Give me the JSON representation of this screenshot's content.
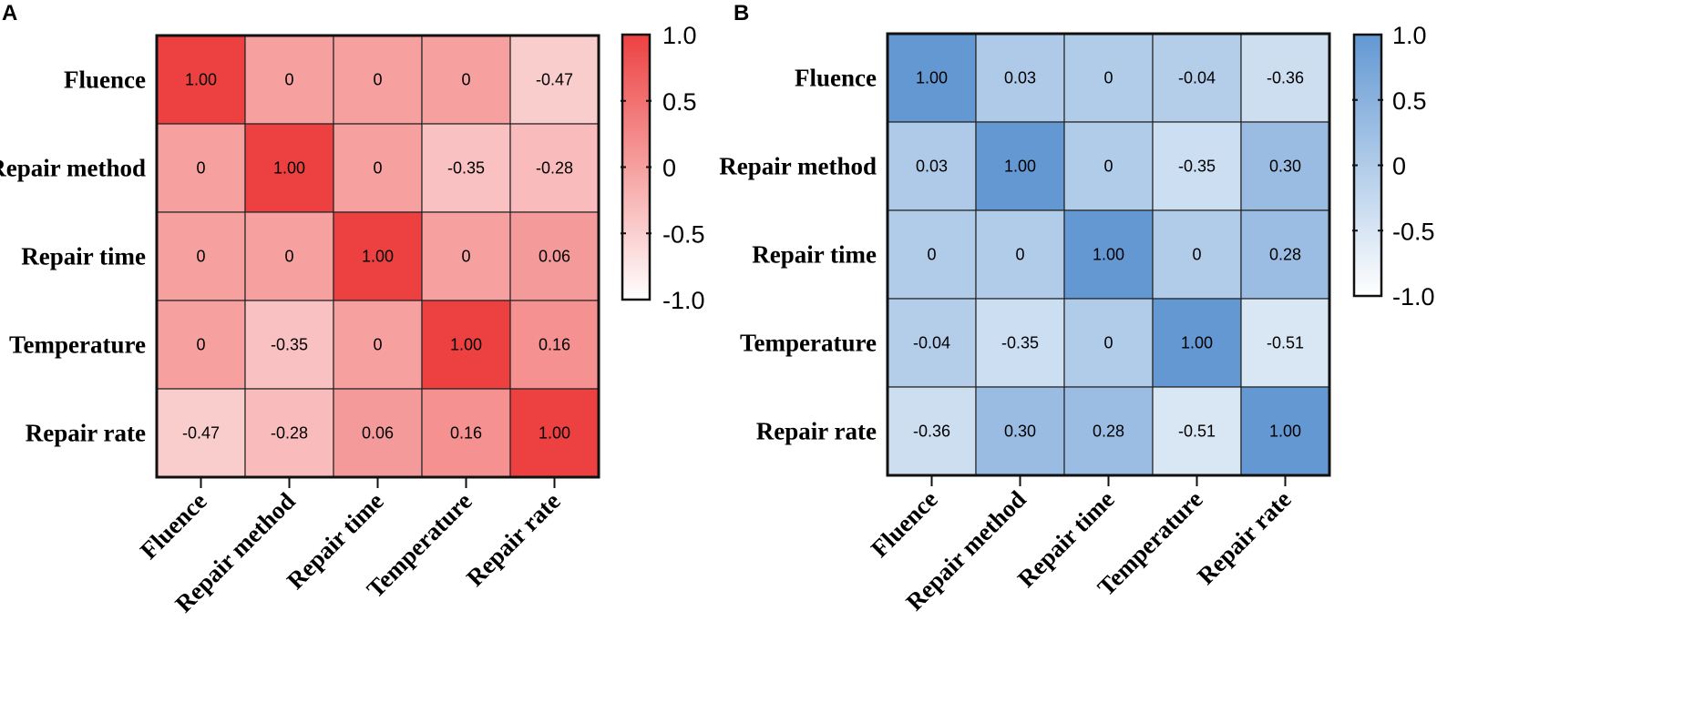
{
  "chart_data": [
    {
      "panel": "A",
      "type": "heatmap",
      "variables": [
        "Fluence",
        "Repair method",
        "Repair time",
        "Temperature",
        "Repair rate"
      ],
      "matrix": [
        [
          1.0,
          0,
          0,
          0,
          -0.47
        ],
        [
          0,
          1.0,
          0,
          -0.35,
          -0.28
        ],
        [
          0,
          0,
          1.0,
          0,
          0.06
        ],
        [
          0,
          -0.35,
          0,
          1.0,
          0.16
        ],
        [
          -0.47,
          -0.28,
          0.06,
          0.16,
          1.0
        ]
      ],
      "cell_labels": [
        [
          "1.00",
          "0",
          "0",
          "0",
          "-0.47"
        ],
        [
          "0",
          "1.00",
          "0",
          "-0.35",
          "-0.28"
        ],
        [
          "0",
          "0",
          "1.00",
          "0",
          "0.06"
        ],
        [
          "0",
          "-0.35",
          "0",
          "1.00",
          "0.16"
        ],
        [
          "-0.47",
          "-0.28",
          "0.06",
          "0.16",
          "1.00"
        ]
      ],
      "colorbar": {
        "range": [
          -1.0,
          1.0
        ],
        "ticks": [
          "1.0",
          "0.5",
          "0",
          "-0.5",
          "-1.0"
        ],
        "low_color": "#ffffff",
        "high_color": "#ed4141"
      }
    },
    {
      "panel": "B",
      "type": "heatmap",
      "variables": [
        "Fluence",
        "Repair method",
        "Repair time",
        "Temperature",
        "Repair rate"
      ],
      "matrix": [
        [
          1.0,
          0.03,
          0,
          -0.04,
          -0.36
        ],
        [
          0.03,
          1.0,
          0,
          -0.35,
          0.3
        ],
        [
          0,
          0,
          1.0,
          0,
          0.28
        ],
        [
          -0.04,
          -0.35,
          0,
          1.0,
          -0.51
        ],
        [
          -0.36,
          0.3,
          0.28,
          -0.51,
          1.0
        ]
      ],
      "cell_labels": [
        [
          "1.00",
          "0.03",
          "0",
          "-0.04",
          "-0.36"
        ],
        [
          "0.03",
          "1.00",
          "0",
          "-0.35",
          "0.30"
        ],
        [
          "0",
          "0",
          "1.00",
          "0",
          "0.28"
        ],
        [
          "-0.04",
          "-0.35",
          "0",
          "1.00",
          "-0.51"
        ],
        [
          "-0.36",
          "0.30",
          "0.28",
          "-0.51",
          "1.00"
        ]
      ],
      "colorbar": {
        "range": [
          -1.0,
          1.0
        ],
        "ticks": [
          "1.0",
          "0.5",
          "0",
          "-0.5",
          "-1.0"
        ],
        "low_color": "#ffffff",
        "high_color": "#6398d3"
      }
    }
  ]
}
